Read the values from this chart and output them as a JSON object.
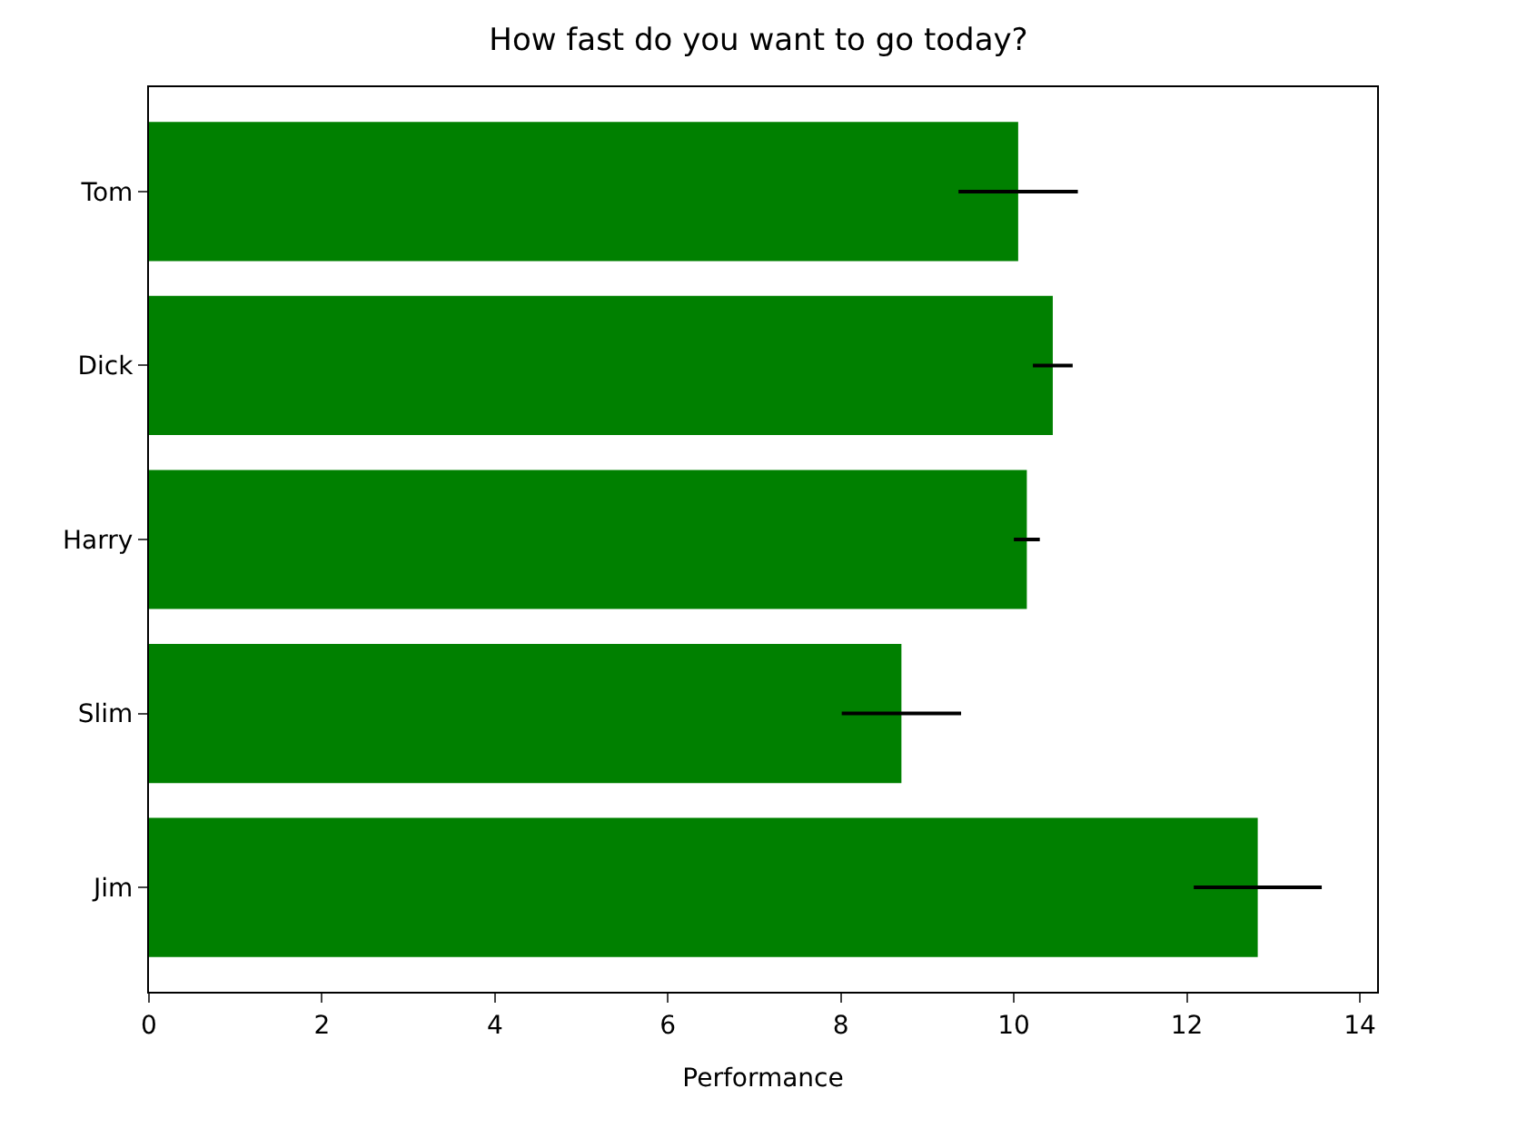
{
  "chart_data": {
    "type": "bar",
    "orientation": "horizontal",
    "title": "How fast do you want to go today?",
    "xlabel": "Performance",
    "categories": [
      "Tom",
      "Dick",
      "Harry",
      "Slim",
      "Jim"
    ],
    "values": [
      10.05,
      10.45,
      10.15,
      8.7,
      12.82
    ],
    "errors": [
      0.69,
      0.23,
      0.15,
      0.69,
      0.74
    ],
    "color": "#008000",
    "xlim": [
      0,
      14.2
    ],
    "xticks": [
      0,
      2,
      4,
      6,
      8,
      10,
      12,
      14
    ]
  }
}
